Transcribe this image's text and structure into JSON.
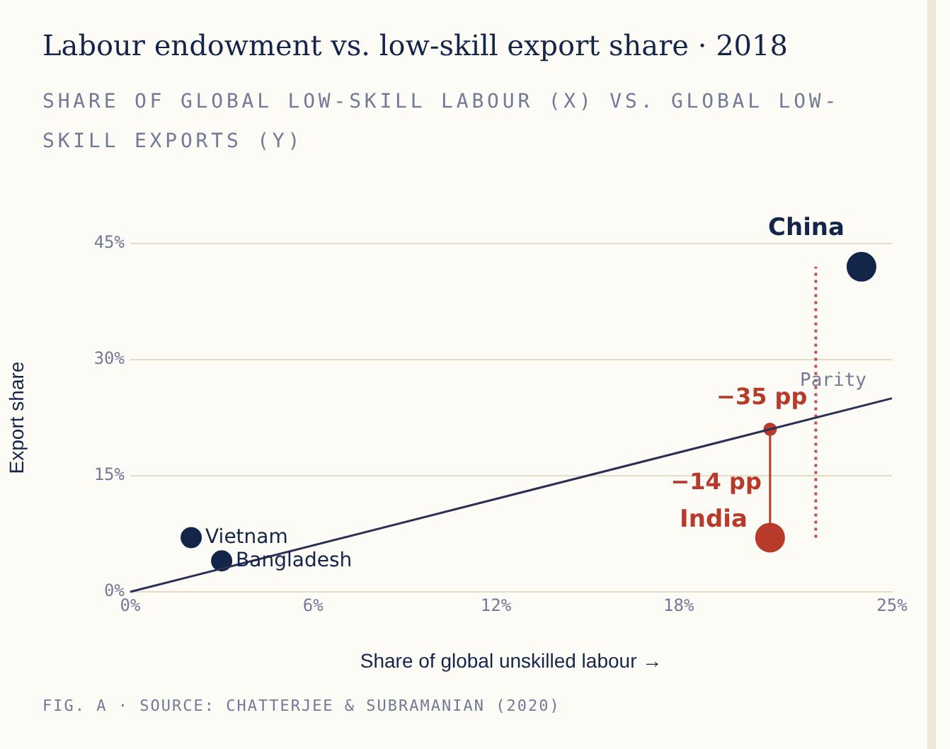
{
  "chart_data": {
    "type": "scatter",
    "title": "Labour endowment vs. low-skill export share · 2018",
    "subtitle": "SHARE OF GLOBAL LOW-SKILL LABOUR (X) VS. GLOBAL LOW-SKILL EXPORTS (Y)",
    "xlabel": "Share of global unskilled labour →",
    "ylabel": "Export share",
    "xlim": [
      0,
      25
    ],
    "ylim": [
      0,
      45
    ],
    "xticks": [
      {
        "value": 0,
        "label": "0%"
      },
      {
        "value": 6,
        "label": "6%"
      },
      {
        "value": 12,
        "label": "12%"
      },
      {
        "value": 18,
        "label": "18%"
      },
      {
        "value": 25,
        "label": "25%"
      }
    ],
    "yticks": [
      {
        "value": 0,
        "label": "0%"
      },
      {
        "value": 15,
        "label": "15%"
      },
      {
        "value": 30,
        "label": "30%"
      },
      {
        "value": 45,
        "label": "45%"
      }
    ],
    "grid": "y",
    "legend": false,
    "series": [
      {
        "name": "Parity",
        "type": "line",
        "color": "#2a2f55",
        "x": [
          0,
          25
        ],
        "values": [
          0,
          25
        ],
        "marker": "none",
        "line_style": "solid"
      },
      {
        "type": "line",
        "color": "#c0504a",
        "x": [
          22.5,
          22.5
        ],
        "values": [
          7,
          42
        ],
        "marker": "none",
        "line_style": "dotted"
      },
      {
        "type": "line",
        "color": "#b83a2b",
        "x": [
          21,
          21
        ],
        "values": [
          7,
          21
        ],
        "marker": "circle",
        "line_style": "solid"
      },
      {
        "name": "Vietnam",
        "type": "bubble",
        "color": "#14254a",
        "x": [
          2
        ],
        "values": [
          7
        ],
        "sizes": [
          0.49
        ]
      },
      {
        "name": "Bangladesh",
        "type": "bubble",
        "color": "#14254a",
        "x": [
          3
        ],
        "values": [
          4
        ],
        "sizes": [
          0.49
        ]
      },
      {
        "name": "India",
        "type": "bubble",
        "color": "#b83a2b",
        "x": [
          21
        ],
        "values": [
          7
        ],
        "sizes": [
          1
        ]
      },
      {
        "name": "China",
        "type": "bubble",
        "color": "#14254a",
        "x": [
          24
        ],
        "values": [
          42
        ],
        "sizes": [
          1
        ]
      }
    ],
    "annotations": [
      {
        "text": "−35 pp",
        "x": 22.5,
        "y": 25
      },
      {
        "text": "−14 pp",
        "x": 21,
        "y": 14
      },
      "FIG. A · SOURCE: CHATTERJEE & SUBRAMANIAN (2020)"
    ]
  }
}
